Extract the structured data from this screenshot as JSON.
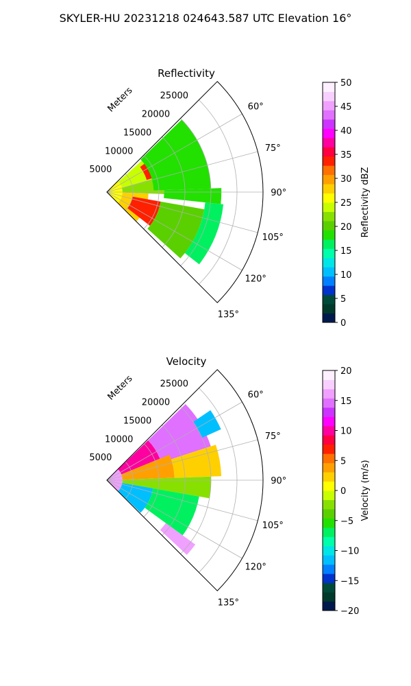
{
  "suptitle": "SKYLER-HU  20231218  024643.587 UTC Elevation 16°",
  "chart_data": [
    {
      "type": "heatmap",
      "title": "Reflectivity",
      "range_axis_label": "Meters",
      "range_ticks": [
        5000,
        10000,
        15000,
        20000,
        25000
      ],
      "range_tick_labels": [
        "5000",
        "10000",
        "15000",
        "20000",
        "25000"
      ],
      "range_max": 30000,
      "azimuth_range_deg": [
        45,
        135
      ],
      "azimuth_ticks": [
        60,
        75,
        90,
        105,
        120,
        135
      ],
      "azimuth_tick_labels": [
        "60°",
        "75°",
        "90°",
        "105°",
        "120°",
        "135°"
      ],
      "grid": true,
      "colorbar": {
        "label": "Reflectivity dBZ",
        "lim": [
          0,
          50
        ],
        "ticks": [
          0,
          5,
          10,
          15,
          20,
          25,
          30,
          35,
          40,
          45,
          50
        ],
        "tick_labels": [
          "0",
          "5",
          "10",
          "15",
          "20",
          "25",
          "30",
          "35",
          "40",
          "45",
          "50"
        ],
        "colors": [
          "#001a4d",
          "#003a2a",
          "#004a3a",
          "#0033cc",
          "#0080ff",
          "#00bfff",
          "#00e5e5",
          "#00ffaa",
          "#00f060",
          "#22e000",
          "#5ad000",
          "#88e000",
          "#c8ff00",
          "#ffff00",
          "#ffd000",
          "#ffa000",
          "#ff7000",
          "#ff2000",
          "#ff0040",
          "#ff00a0",
          "#ff00ff",
          "#cc33ff",
          "#e070ff",
          "#f0a0ff",
          "#f8d0ff",
          "#fff0ff"
        ]
      },
      "sectors": [
        {
          "r": [
            0,
            3000
          ],
          "az": [
            45,
            135
          ],
          "value": 25
        },
        {
          "r": [
            3000,
            9000
          ],
          "az": [
            48,
            74
          ],
          "value": 24
        },
        {
          "r": [
            3000,
            11000
          ],
          "az": [
            74,
            92
          ],
          "value": 22
        },
        {
          "r": [
            3000,
            8000
          ],
          "az": [
            92,
            135
          ],
          "value": 27
        },
        {
          "r": [
            8000,
            12000
          ],
          "az": [
            53,
            73
          ],
          "value": 34
        },
        {
          "r": [
            9000,
            20000
          ],
          "az": [
            46,
            88
          ],
          "value": 19
        },
        {
          "r": [
            11000,
            22000
          ],
          "az": [
            88,
            96
          ],
          "value": 18
        },
        {
          "r": [
            5000,
            10500
          ],
          "az": [
            100,
            128
          ],
          "value": 34
        },
        {
          "r": [
            10500,
            19000
          ],
          "az": [
            100,
            132
          ],
          "value": 21
        },
        {
          "r": [
            19000,
            22500
          ],
          "az": [
            96,
            128
          ],
          "value": 17
        }
      ]
    },
    {
      "type": "heatmap",
      "title": "Velocity",
      "range_axis_label": "Meters",
      "range_ticks": [
        5000,
        10000,
        15000,
        20000,
        25000
      ],
      "range_tick_labels": [
        "5000",
        "10000",
        "15000",
        "20000",
        "25000"
      ],
      "range_max": 30000,
      "azimuth_range_deg": [
        45,
        135
      ],
      "azimuth_ticks": [
        60,
        75,
        90,
        105,
        120,
        135
      ],
      "azimuth_tick_labels": [
        "60°",
        "75°",
        "90°",
        "105°",
        "120°",
        "135°"
      ],
      "grid": true,
      "colorbar": {
        "label": "Velocity (m/s)",
        "lim": [
          -20,
          20
        ],
        "ticks": [
          -20,
          -15,
          -10,
          -5,
          0,
          5,
          10,
          15,
          20
        ],
        "tick_labels": [
          "−20",
          "−15",
          "−10",
          "−5",
          "0",
          "5",
          "10",
          "15",
          "20"
        ],
        "colors": [
          "#001a4d",
          "#003a2a",
          "#004a3a",
          "#0033cc",
          "#0080ff",
          "#00bfff",
          "#00e5e5",
          "#00ffaa",
          "#00f060",
          "#22e000",
          "#5ad000",
          "#88e000",
          "#c8ff00",
          "#ffff00",
          "#ffd000",
          "#ffa000",
          "#ff7000",
          "#ff2000",
          "#ff0040",
          "#ff00a0",
          "#ff00ff",
          "#cc33ff",
          "#e070ff",
          "#f0a0ff",
          "#f8d0ff",
          "#fff0ff"
        ]
      },
      "sectors": [
        {
          "r": [
            0,
            3000
          ],
          "az": [
            45,
            135
          ],
          "value": 16
        },
        {
          "r": [
            3000,
            11000
          ],
          "az": [
            46,
            68
          ],
          "value": 10
        },
        {
          "r": [
            11000,
            21000
          ],
          "az": [
            46,
            72
          ],
          "value": 15
        },
        {
          "r": [
            3000,
            13000
          ],
          "az": [
            68,
            88
          ],
          "value": 4
        },
        {
          "r": [
            13000,
            22000
          ],
          "az": [
            72,
            88
          ],
          "value": 3
        },
        {
          "r": [
            3000,
            20000
          ],
          "az": [
            88,
            100
          ],
          "value": -3
        },
        {
          "r": [
            3000,
            9000
          ],
          "az": [
            100,
            134
          ],
          "value": -11
        },
        {
          "r": [
            9000,
            18000
          ],
          "az": [
            100,
            126
          ],
          "value": -7
        },
        {
          "r": [
            14000,
            21000
          ],
          "az": [
            126,
            133
          ],
          "value": 16
        },
        {
          "r": [
            20000,
            24000
          ],
          "az": [
            56,
            66
          ],
          "value": -11
        }
      ]
    }
  ]
}
